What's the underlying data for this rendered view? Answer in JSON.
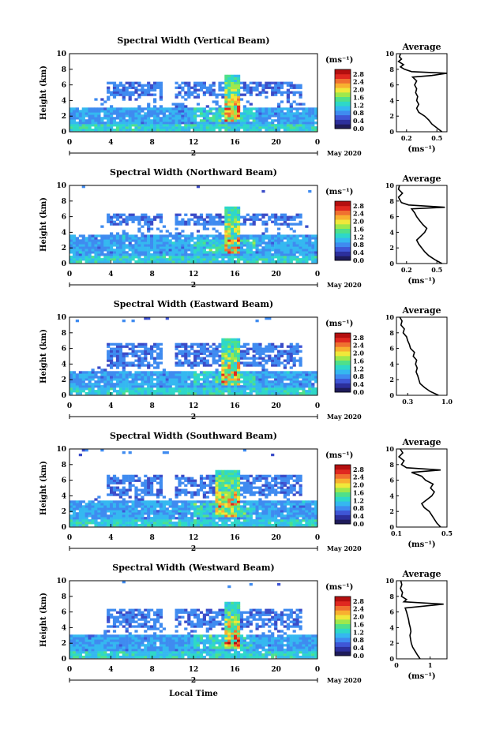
{
  "colors": {
    "low": "#3b4cc8",
    "scale": [
      "#1e1b5a",
      "#2c2f9c",
      "#3f56d6",
      "#3f8bf0",
      "#35b8f0",
      "#2ed8c8",
      "#4fe08a",
      "#9ee84c",
      "#f0e83a",
      "#f8b030",
      "#f07030",
      "#e02820",
      "#b40f0f"
    ]
  },
  "chart_data": [
    {
      "type": "heatmap",
      "title": "Spectral Width (Vertical Beam)",
      "ylabel": "Height (km)",
      "xticks": [
        "0",
        "4",
        "8",
        "12",
        "16",
        "20",
        "0"
      ],
      "ytick_labels": [
        "0",
        "2",
        "4",
        "6",
        "8",
        "10"
      ],
      "xlim": [
        0,
        24
      ],
      "ylim": [
        0,
        10
      ],
      "day_label": "2",
      "date_label": "May 2020",
      "colorbar": {
        "unit": "(ms⁻¹)",
        "ticks": [
          "0.0",
          "0.4",
          "0.8",
          "1.2",
          "1.6",
          "2.0",
          "2.4",
          "2.8"
        ]
      },
      "features": {
        "low_layer_top": 3.0,
        "mid_layer": [
          4.5,
          6.3
        ],
        "core_time": [
          15.0,
          16.3
        ]
      },
      "average": {
        "title": "Average",
        "xlabel": "(ms⁻¹)",
        "xlim": [
          0.1,
          0.6
        ],
        "xticks": [
          "0.2",
          "0.5"
        ],
        "xtick_values": [
          0.2,
          0.5
        ],
        "height": [
          0,
          0.5,
          1,
          1.5,
          2,
          2.5,
          3,
          3.5,
          4,
          4.5,
          5,
          5.5,
          6,
          6.5,
          7,
          7.2,
          7.5,
          7.7,
          8,
          8.3,
          8.6,
          9,
          9.3,
          9.6,
          10
        ],
        "width": [
          0.55,
          0.5,
          0.45,
          0.42,
          0.38,
          0.32,
          0.3,
          0.32,
          0.3,
          0.31,
          0.29,
          0.3,
          0.28,
          0.3,
          0.26,
          0.45,
          0.6,
          0.25,
          0.18,
          0.14,
          0.17,
          0.12,
          0.15,
          0.13,
          0.14
        ]
      }
    },
    {
      "type": "heatmap",
      "title": "Spectral Width (Northward Beam)",
      "ylabel": "Height (km)",
      "xticks": [
        "0",
        "4",
        "8",
        "12",
        "16",
        "20",
        "0"
      ],
      "ytick_labels": [
        "0",
        "2",
        "4",
        "6",
        "8",
        "10"
      ],
      "xlim": [
        0,
        24
      ],
      "ylim": [
        0,
        10
      ],
      "day_label": "2",
      "date_label": "May 2020",
      "colorbar": {
        "unit": "(ms⁻¹)",
        "ticks": [
          "0.0",
          "0.4",
          "0.8",
          "1.2",
          "1.6",
          "2.0",
          "2.4",
          "2.8"
        ]
      },
      "features": {
        "low_layer_top": 3.5,
        "mid_layer": [
          4.6,
          6.2
        ],
        "core_time": [
          15.0,
          16.3
        ]
      },
      "average": {
        "title": "Average",
        "xlabel": "(ms⁻¹)",
        "xlim": [
          0.1,
          0.6
        ],
        "xticks": [
          "0.2",
          "0.5"
        ],
        "xtick_values": [
          0.2,
          0.5
        ],
        "height": [
          0,
          0.5,
          1,
          1.5,
          2,
          2.5,
          3,
          3.5,
          4,
          4.5,
          5,
          5.5,
          6,
          6.5,
          7,
          7.2,
          7.5,
          7.8,
          8,
          8.5,
          9,
          9.5,
          10
        ],
        "width": [
          0.55,
          0.48,
          0.42,
          0.38,
          0.35,
          0.32,
          0.3,
          0.34,
          0.38,
          0.4,
          0.36,
          0.33,
          0.3,
          0.28,
          0.25,
          0.58,
          0.22,
          0.15,
          0.14,
          0.12,
          0.16,
          0.12,
          0.13
        ]
      }
    },
    {
      "type": "heatmap",
      "title": "Spectral Width (Eastward Beam)",
      "ylabel": "Height (km)",
      "xticks": [
        "0",
        "4",
        "8",
        "12",
        "16",
        "20",
        "0"
      ],
      "ytick_labels": [
        "0",
        "2",
        "4",
        "6",
        "8",
        "10"
      ],
      "xlim": [
        0,
        24
      ],
      "ylim": [
        0,
        10
      ],
      "day_label": "2",
      "date_label": "May 2020",
      "colorbar": {
        "unit": "(ms⁻¹)",
        "ticks": [
          "0.0",
          "0.4",
          "0.8",
          "1.2",
          "1.6",
          "2.0",
          "2.4",
          "2.8"
        ]
      },
      "features": {
        "low_layer_top": 3.0,
        "mid_layer": [
          3.5,
          6.5
        ],
        "core_time": [
          14.5,
          16.5
        ]
      },
      "average": {
        "title": "Average",
        "xlabel": "",
        "xlim": [
          0.1,
          1.0
        ],
        "xticks": [
          "0.3",
          "1.0"
        ],
        "xtick_values": [
          0.3,
          1.0
        ],
        "height": [
          0,
          0.5,
          1,
          1.5,
          2,
          2.5,
          3,
          3.5,
          4,
          4.5,
          5,
          5.5,
          6,
          6.5,
          7,
          7.5,
          8,
          8.5,
          9,
          9.5,
          10
        ],
        "width": [
          0.85,
          0.7,
          0.6,
          0.52,
          0.5,
          0.48,
          0.45,
          0.47,
          0.44,
          0.46,
          0.4,
          0.42,
          0.35,
          0.33,
          0.3,
          0.28,
          0.22,
          0.24,
          0.18,
          0.2,
          0.16
        ]
      }
    },
    {
      "type": "heatmap",
      "title": "Spectral Width (Southward Beam)",
      "ylabel": "Height (km)",
      "xticks": [
        "0",
        "4",
        "8",
        "12",
        "16",
        "20",
        "0"
      ],
      "ytick_labels": [
        "0",
        "2",
        "4",
        "6",
        "8",
        "10"
      ],
      "xlim": [
        0,
        24
      ],
      "ylim": [
        0,
        10
      ],
      "day_label": "2",
      "date_label": "May 2020",
      "colorbar": {
        "unit": "(ms⁻¹)",
        "ticks": [
          "0.0",
          "0.4",
          "0.8",
          "1.2",
          "1.6",
          "2.0",
          "2.4",
          "2.8"
        ]
      },
      "features": {
        "low_layer_top": 3.2,
        "mid_layer": [
          3.8,
          6.5
        ],
        "core_time": [
          14.0,
          16.5
        ]
      },
      "average": {
        "title": "Average",
        "xlabel": "(ms⁻¹)",
        "xlim": [
          0.1,
          0.5
        ],
        "xticks": [
          "0.1",
          "0.5"
        ],
        "xtick_values": [
          0.1,
          0.5
        ],
        "height": [
          0,
          0.5,
          1,
          1.5,
          2,
          2.5,
          3,
          3.5,
          4,
          4.5,
          5,
          5.5,
          6,
          6.5,
          7,
          7.3,
          7.6,
          8,
          8.5,
          9,
          9.5,
          10
        ],
        "width": [
          0.45,
          0.42,
          0.4,
          0.38,
          0.36,
          0.32,
          0.3,
          0.34,
          0.38,
          0.4,
          0.37,
          0.39,
          0.33,
          0.3,
          0.22,
          0.45,
          0.18,
          0.14,
          0.16,
          0.12,
          0.15,
          0.13
        ]
      }
    },
    {
      "type": "heatmap",
      "title": "Spectral Width (Westward Beam)",
      "ylabel": "Height (km)",
      "xlabel": "Local Time",
      "xticks": [
        "0",
        "4",
        "8",
        "12",
        "16",
        "20",
        "0"
      ],
      "ytick_labels": [
        "0",
        "2",
        "4",
        "6",
        "8",
        "10"
      ],
      "xlim": [
        0,
        24
      ],
      "ylim": [
        0,
        10
      ],
      "day_label": "2",
      "date_label": "May 2020",
      "colorbar": {
        "unit": "(ms⁻¹)",
        "ticks": [
          "0.0",
          "0.4",
          "0.8",
          "1.2",
          "1.6",
          "2.0",
          "2.4",
          "2.8"
        ]
      },
      "features": {
        "low_layer_top": 3.0,
        "mid_layer": [
          3.8,
          6.3
        ],
        "core_time": [
          14.8,
          16.5
        ]
      },
      "average": {
        "title": "Average",
        "xlabel": "(ms⁻¹)",
        "xlim": [
          0,
          1.5
        ],
        "xticks": [
          "0",
          "1"
        ],
        "xtick_values": [
          0,
          1
        ],
        "height": [
          0,
          0.5,
          1,
          1.5,
          2,
          2.5,
          3,
          3.5,
          4,
          4.5,
          5,
          5.5,
          6,
          6.5,
          7,
          7.3,
          7.6,
          8,
          8.5,
          9,
          9.5,
          10
        ],
        "width": [
          0.7,
          0.62,
          0.55,
          0.48,
          0.44,
          0.42,
          0.4,
          0.43,
          0.41,
          0.38,
          0.36,
          0.33,
          0.3,
          0.26,
          1.4,
          0.22,
          0.3,
          0.15,
          0.18,
          0.12,
          0.16,
          0.13
        ]
      }
    }
  ]
}
